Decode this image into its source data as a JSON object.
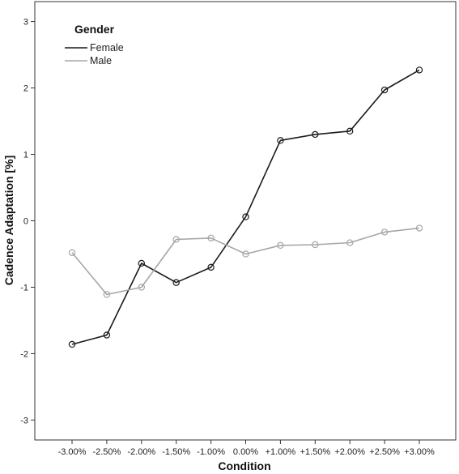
{
  "chart_data": {
    "type": "line",
    "xlabel": "Condition",
    "ylabel": "Cadence Adaptation [%]",
    "categories": [
      "-3.00%",
      "-2.50%",
      "-2.00%",
      "-1.50%",
      "-1.00%",
      "0.00%",
      "+1.00%",
      "+1.50%",
      "+2.00%",
      "+2.50%",
      "+3.00%"
    ],
    "ylim": [
      -3.3,
      3.3
    ],
    "yticks": [
      -3,
      -2,
      -1,
      0,
      1,
      2,
      3
    ],
    "grid": false,
    "legend": {
      "title": "Gender",
      "position": "top-left"
    },
    "series": [
      {
        "name": "Female",
        "color": "#1a1a1a",
        "values": [
          -1.86,
          -1.72,
          -0.64,
          -0.93,
          -0.7,
          0.06,
          1.21,
          1.3,
          1.35,
          1.97,
          2.27
        ]
      },
      {
        "name": "Male",
        "color": "#a6a6a6",
        "values": [
          -0.48,
          -1.11,
          -1.0,
          -0.28,
          -0.26,
          -0.5,
          -0.37,
          -0.36,
          -0.33,
          -0.17,
          -0.11
        ]
      }
    ]
  }
}
